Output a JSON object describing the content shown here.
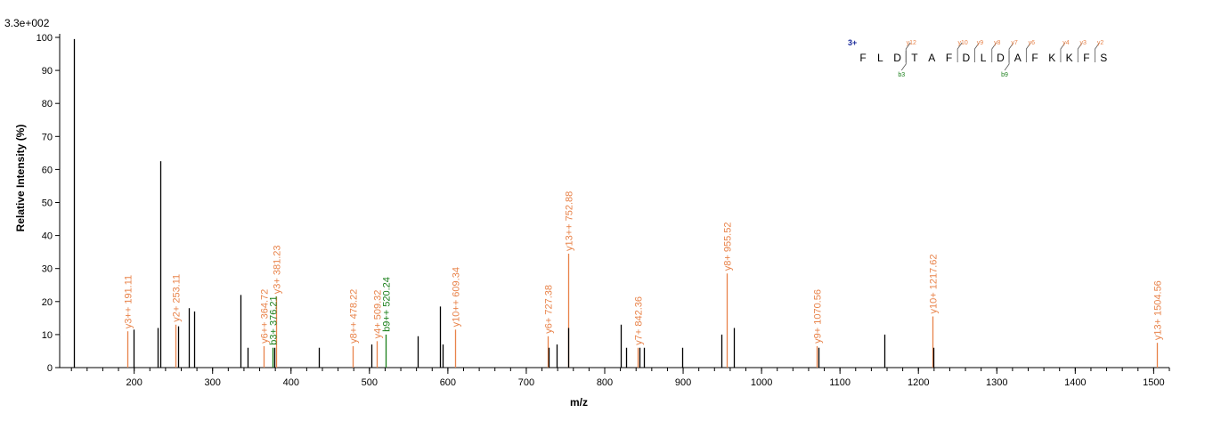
{
  "chart_data": {
    "type": "bar",
    "title": "",
    "scale_label": "3.3e+002",
    "xlabel": "m/z",
    "ylabel": "Relative   Intensity (%)",
    "xlim": [
      105,
      1520
    ],
    "ylim": [
      0,
      100
    ],
    "x_ticks": [
      200,
      300,
      400,
      500,
      600,
      700,
      800,
      900,
      1000,
      1100,
      1200,
      1300,
      1400,
      1500
    ],
    "y_ticks": [
      0,
      10,
      20,
      30,
      40,
      50,
      60,
      70,
      80,
      90,
      100
    ],
    "x_minor_step": 20,
    "grid": false,
    "colors": {
      "unassigned": "#000000",
      "y_ion": "#e8834a",
      "b_ion": "#1a7f1a",
      "charge": "#1a2a9a"
    },
    "peaks": [
      {
        "mz": 123.0,
        "intensity": 99.5,
        "label": "",
        "ion": "none"
      },
      {
        "mz": 191.11,
        "intensity": 11.0,
        "label": "y3++ 191.11",
        "ion": "y"
      },
      {
        "mz": 199.0,
        "intensity": 11.5,
        "label": "",
        "ion": "none"
      },
      {
        "mz": 230.0,
        "intensity": 12.0,
        "label": "",
        "ion": "none"
      },
      {
        "mz": 233.0,
        "intensity": 62.5,
        "label": "",
        "ion": "none"
      },
      {
        "mz": 253.11,
        "intensity": 13.0,
        "label": "y2+ 253.11",
        "ion": "y"
      },
      {
        "mz": 256.0,
        "intensity": 12.5,
        "label": "",
        "ion": "none"
      },
      {
        "mz": 270.0,
        "intensity": 18.0,
        "label": "",
        "ion": "none"
      },
      {
        "mz": 277.0,
        "intensity": 17.0,
        "label": "",
        "ion": "none"
      },
      {
        "mz": 335.0,
        "intensity": 22.0,
        "label": "",
        "ion": "none"
      },
      {
        "mz": 345.0,
        "intensity": 6.0,
        "label": "",
        "ion": "none"
      },
      {
        "mz": 364.72,
        "intensity": 6.5,
        "label": "y6++ 364.72",
        "ion": "y"
      },
      {
        "mz": 376.21,
        "intensity": 6.0,
        "label": "b3+ 376.21",
        "ion": "b"
      },
      {
        "mz": 379.0,
        "intensity": 6.0,
        "label": "",
        "ion": "none"
      },
      {
        "mz": 381.23,
        "intensity": 21.5,
        "label": "y3+ 381.23",
        "ion": "y"
      },
      {
        "mz": 435.0,
        "intensity": 6.0,
        "label": "",
        "ion": "none"
      },
      {
        "mz": 478.22,
        "intensity": 6.5,
        "label": "y8++ 478.22",
        "ion": "y"
      },
      {
        "mz": 503.0,
        "intensity": 7.0,
        "label": "",
        "ion": "none"
      },
      {
        "mz": 509.32,
        "intensity": 8.0,
        "label": "y4+ 509.32",
        "ion": "y"
      },
      {
        "mz": 520.24,
        "intensity": 10.0,
        "label": "b9++ 520.24",
        "ion": "b"
      },
      {
        "mz": 562.0,
        "intensity": 9.5,
        "label": "",
        "ion": "none"
      },
      {
        "mz": 590.0,
        "intensity": 18.5,
        "label": "",
        "ion": "none"
      },
      {
        "mz": 593.0,
        "intensity": 7.0,
        "label": "",
        "ion": "none"
      },
      {
        "mz": 609.34,
        "intensity": 11.5,
        "label": "y10++ 609.34",
        "ion": "y"
      },
      {
        "mz": 727.38,
        "intensity": 9.5,
        "label": "y6+ 727.38",
        "ion": "y"
      },
      {
        "mz": 729.0,
        "intensity": 6.0,
        "label": "",
        "ion": "none"
      },
      {
        "mz": 739.0,
        "intensity": 7.0,
        "label": "",
        "ion": "none"
      },
      {
        "mz": 752.88,
        "intensity": 34.5,
        "label": "y13++ 752.88",
        "ion": "y"
      },
      {
        "mz": 754.0,
        "intensity": 12.0,
        "label": "",
        "ion": "none"
      },
      {
        "mz": 821.0,
        "intensity": 13.0,
        "label": "",
        "ion": "none"
      },
      {
        "mz": 827.0,
        "intensity": 6.0,
        "label": "",
        "ion": "none"
      },
      {
        "mz": 842.36,
        "intensity": 6.0,
        "label": "y7+ 842.36",
        "ion": "y"
      },
      {
        "mz": 844.0,
        "intensity": 6.0,
        "label": "",
        "ion": "none"
      },
      {
        "mz": 850.0,
        "intensity": 6.0,
        "label": "",
        "ion": "none"
      },
      {
        "mz": 899.0,
        "intensity": 6.0,
        "label": "",
        "ion": "none"
      },
      {
        "mz": 949.0,
        "intensity": 10.0,
        "label": "",
        "ion": "none"
      },
      {
        "mz": 955.52,
        "intensity": 28.5,
        "label": "y8+ 955.52",
        "ion": "y"
      },
      {
        "mz": 965.0,
        "intensity": 12.0,
        "label": "",
        "ion": "none"
      },
      {
        "mz": 1070.56,
        "intensity": 6.5,
        "label": "y9+ 1070.56",
        "ion": "y"
      },
      {
        "mz": 1072.0,
        "intensity": 6.0,
        "label": "",
        "ion": "none"
      },
      {
        "mz": 1157.0,
        "intensity": 10.0,
        "label": "",
        "ion": "none"
      },
      {
        "mz": 1217.62,
        "intensity": 15.5,
        "label": "y10+ 1217.62",
        "ion": "y"
      },
      {
        "mz": 1219.0,
        "intensity": 6.0,
        "label": "",
        "ion": "none"
      },
      {
        "mz": 1504.56,
        "intensity": 7.5,
        "label": "y13+ 1504.56",
        "ion": "y"
      }
    ],
    "sequence": {
      "charge": "3+",
      "residues": [
        "F",
        "L",
        "D",
        "T",
        "A",
        "F",
        "D",
        "L",
        "D",
        "A",
        "F",
        "K",
        "K",
        "F",
        "S"
      ],
      "y_ions": [
        {
          "after": 3,
          "label": "y12"
        },
        {
          "after": 6,
          "label": "y10"
        },
        {
          "after": 7,
          "label": "y9"
        },
        {
          "after": 8,
          "label": "y8"
        },
        {
          "after": 9,
          "label": "y7"
        },
        {
          "after": 10,
          "label": "y6"
        },
        {
          "after": 12,
          "label": "y4"
        },
        {
          "after": 13,
          "label": "y3"
        },
        {
          "after": 14,
          "label": "y2"
        }
      ],
      "b_ions": [
        {
          "after": 3,
          "label": "b3"
        },
        {
          "after": 9,
          "label": "b9"
        }
      ]
    }
  }
}
